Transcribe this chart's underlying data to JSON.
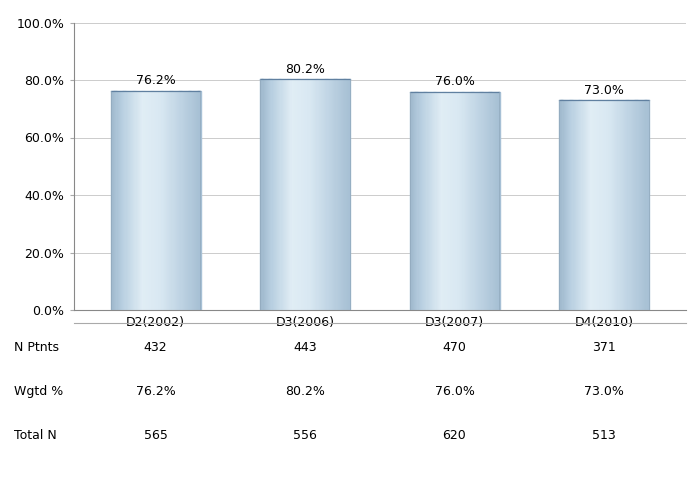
{
  "categories": [
    "D2(2002)",
    "D3(2006)",
    "D3(2007)",
    "D4(2010)"
  ],
  "values": [
    76.2,
    80.2,
    76.0,
    73.0
  ],
  "bar_labels": [
    "76.2%",
    "80.2%",
    "76.0%",
    "73.0%"
  ],
  "ylim": [
    0,
    100
  ],
  "yticks": [
    0,
    20,
    40,
    60,
    80,
    100
  ],
  "ytick_labels": [
    "0.0%",
    "20.0%",
    "40.0%",
    "60.0%",
    "80.0%",
    "100.0%"
  ],
  "table_labels": [
    "N Ptnts",
    "Wgtd %",
    "Total N"
  ],
  "table_data": [
    [
      "432",
      "443",
      "470",
      "371"
    ],
    [
      "76.2%",
      "80.2%",
      "76.0%",
      "73.0%"
    ],
    [
      "565",
      "556",
      "620",
      "513"
    ]
  ],
  "background_color": "#ffffff",
  "plot_bg_color": "#ffffff",
  "grid_color": "#cccccc",
  "text_color": "#000000",
  "label_fontsize": 9,
  "tick_fontsize": 9,
  "table_fontsize": 9,
  "bar_width": 0.6,
  "gradient_stops": [
    [
      0.0,
      [
        0.62,
        0.72,
        0.8
      ]
    ],
    [
      0.12,
      [
        0.72,
        0.81,
        0.88
      ]
    ],
    [
      0.35,
      [
        0.88,
        0.93,
        0.96
      ]
    ],
    [
      0.55,
      [
        0.85,
        0.91,
        0.95
      ]
    ],
    [
      0.75,
      [
        0.76,
        0.84,
        0.9
      ]
    ],
    [
      1.0,
      [
        0.65,
        0.75,
        0.83
      ]
    ]
  ]
}
